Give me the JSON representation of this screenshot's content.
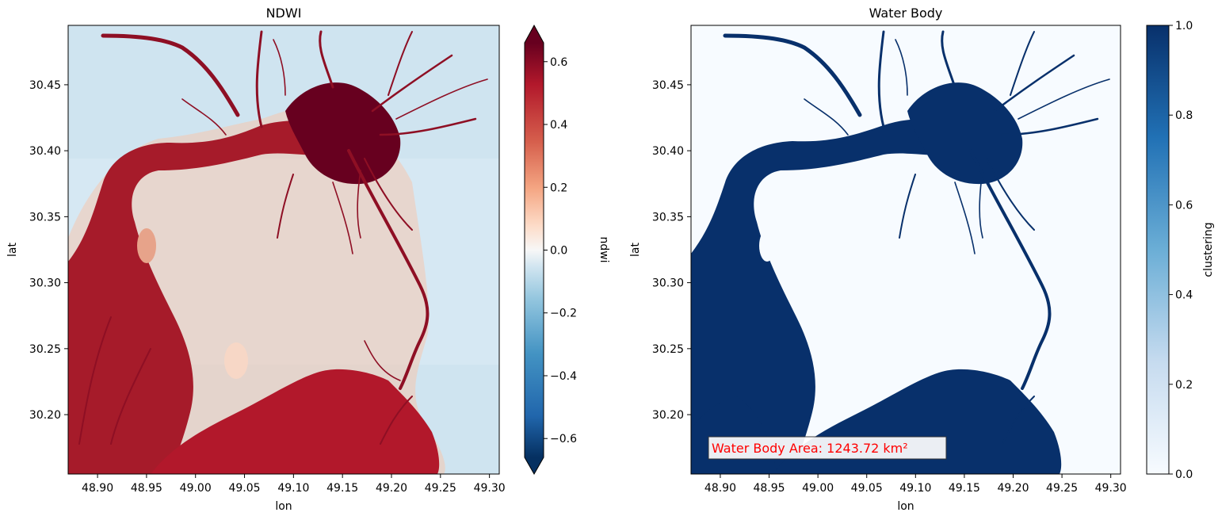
{
  "chart_data": [
    {
      "type": "heatmap",
      "title": "NDWI",
      "xlabel": "lon",
      "ylabel": "lat",
      "xlim": [
        48.87,
        49.31
      ],
      "ylim": [
        30.155,
        30.495
      ],
      "xticks": [
        "48.90",
        "48.95",
        "49.00",
        "49.05",
        "49.10",
        "49.15",
        "49.20",
        "49.25",
        "49.30"
      ],
      "yticks": [
        "30.20",
        "30.25",
        "30.30",
        "30.35",
        "30.40",
        "30.45"
      ],
      "colormap": "RdBu_r",
      "colorbar": {
        "label": "ndwi",
        "range": [
          -0.66,
          0.66
        ],
        "extend": "both",
        "ticks": [
          "0.6",
          "0.4",
          "0.2",
          "0.0",
          "−0.2",
          "−0.4",
          "−0.6"
        ]
      },
      "colors": {
        "high": "#67001f",
        "mid": "#f7f7f7",
        "low": "#053061"
      }
    },
    {
      "type": "heatmap",
      "title": "Water Body",
      "xlabel": "lon",
      "ylabel": "lat",
      "xlim": [
        48.87,
        49.31
      ],
      "ylim": [
        30.155,
        30.495
      ],
      "xticks": [
        "48.90",
        "48.95",
        "49.00",
        "49.05",
        "49.10",
        "49.15",
        "49.20",
        "49.25",
        "49.30"
      ],
      "yticks": [
        "30.20",
        "30.25",
        "30.30",
        "30.35",
        "30.40",
        "30.45"
      ],
      "colormap": "Blues",
      "colorbar": {
        "label": "clustering",
        "range": [
          0.0,
          1.0
        ],
        "ticks": [
          "1.0",
          "0.8",
          "0.6",
          "0.4",
          "0.2",
          "0.0"
        ]
      },
      "annotation": "Water Body Area: 1243.72 km²",
      "colors": {
        "water": "#08306b",
        "land": "#f7fbff",
        "annotation_text": "#ff0000"
      }
    }
  ]
}
